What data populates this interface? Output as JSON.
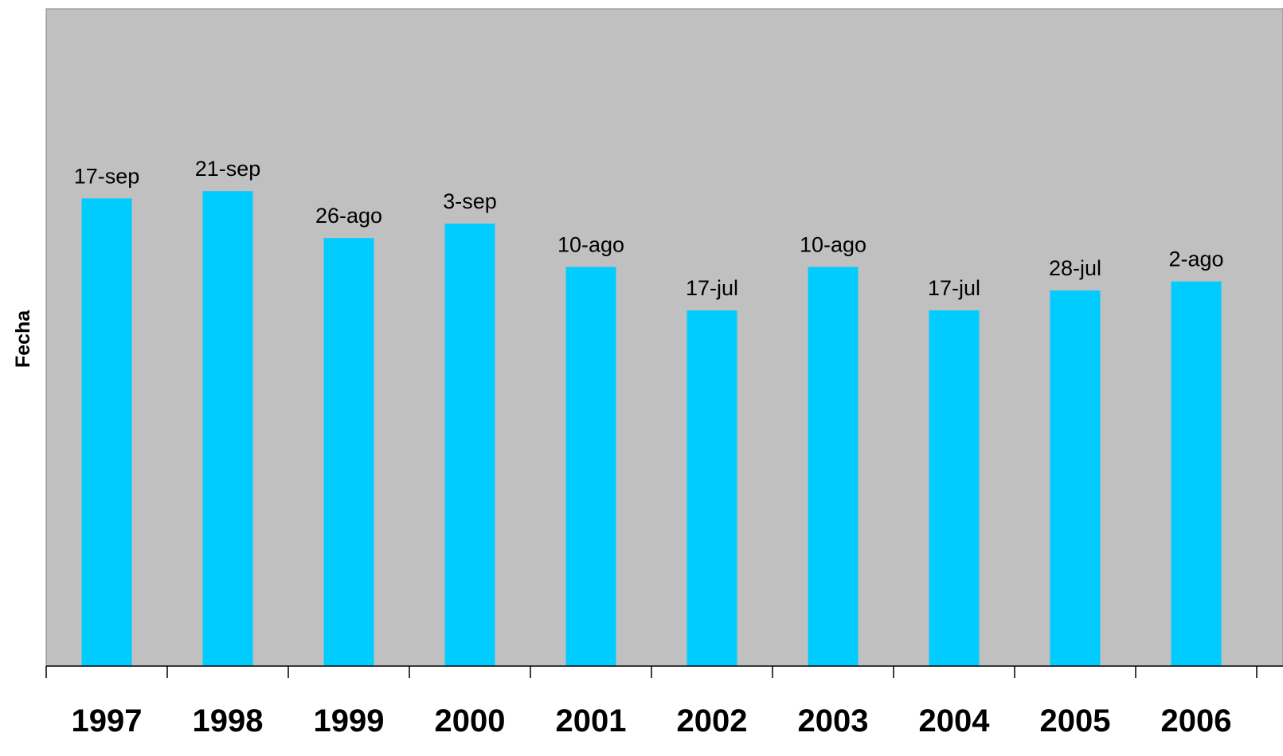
{
  "chart_data": {
    "type": "bar",
    "categories": [
      "1997",
      "1998",
      "1999",
      "2000",
      "2001",
      "2002",
      "2003",
      "2004",
      "2005",
      "2006"
    ],
    "values": [
      "2007-09-17",
      "2007-09-21",
      "2007-08-26",
      "2007-09-03",
      "2007-08-10",
      "2007-07-17",
      "2007-08-10",
      "2007-07-17",
      "2007-07-28",
      "2007-08-02"
    ],
    "data_labels": [
      "17-sep",
      "21-sep",
      "26-ago",
      "3-sep",
      "10-ago",
      "17-jul",
      "10-ago",
      "17-jul",
      "28-jul",
      "2-ago"
    ],
    "title": "",
    "xlabel": "",
    "ylabel": "Fecha",
    "ylim": [
      "2007-01-01",
      "2007-12-31"
    ],
    "grid": false,
    "legend": "none",
    "colors": {
      "bar": "#00CCFF",
      "plot_background": "#C0C0C0",
      "axis": "#000000"
    }
  }
}
